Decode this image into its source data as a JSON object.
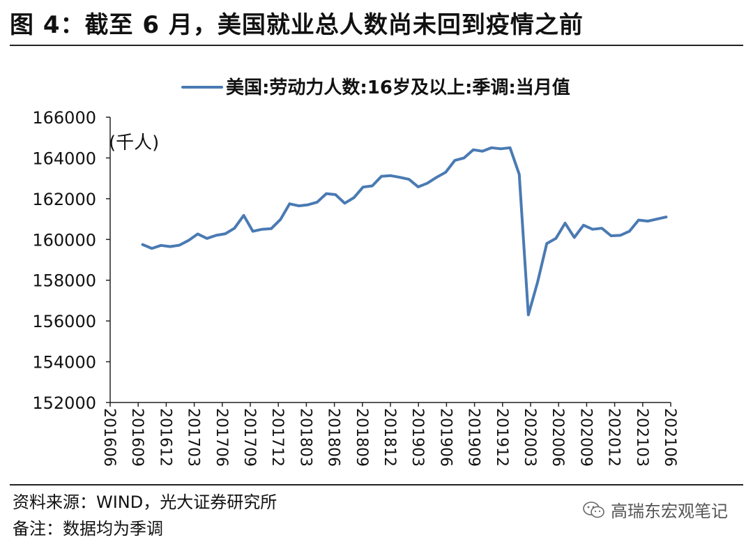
{
  "header": {
    "title": "图 4：截至 6 月，美国就业总人数尚未回到疫情之前"
  },
  "footer": {
    "source": "资料来源：WIND，光大证券研究所",
    "note": "备注：数据均为季调",
    "watermark": "高瑞东宏观笔记"
  },
  "chart_data": {
    "type": "line",
    "title": "",
    "unit_label": "(千人)",
    "legend": [
      "美国:劳动力人数:16岁及以上:季调:当月值"
    ],
    "legend_position": "top-center",
    "xlabel": "",
    "ylabel": "",
    "ylim": [
      152000,
      166000
    ],
    "y_ticks": [
      152000,
      154000,
      156000,
      158000,
      160000,
      162000,
      164000,
      166000
    ],
    "x_tick_labels": [
      "201606",
      "201609",
      "201612",
      "201703",
      "201706",
      "201709",
      "201712",
      "201803",
      "201806",
      "201809",
      "201812",
      "201903",
      "201906",
      "201909",
      "201912",
      "202003",
      "202006",
      "202009",
      "202012",
      "202103",
      "202106"
    ],
    "x": [
      "201609",
      "201610",
      "201611",
      "201612",
      "201701",
      "201702",
      "201703",
      "201704",
      "201705",
      "201706",
      "201707",
      "201708",
      "201709",
      "201710",
      "201711",
      "201712",
      "201801",
      "201802",
      "201803",
      "201804",
      "201805",
      "201806",
      "201807",
      "201808",
      "201809",
      "201810",
      "201811",
      "201812",
      "201901",
      "201902",
      "201903",
      "201904",
      "201905",
      "201906",
      "201907",
      "201908",
      "201909",
      "201910",
      "201911",
      "201912",
      "202001",
      "202002",
      "202003",
      "202004",
      "202005",
      "202006",
      "202007",
      "202008",
      "202009",
      "202010",
      "202011",
      "202012",
      "202101",
      "202102",
      "202103",
      "202104",
      "202105",
      "202106"
    ],
    "series": [
      {
        "name": "美国:劳动力人数:16岁及以上:季调:当月值",
        "color": "#4a7ab3",
        "values": [
          159750,
          159560,
          159710,
          159650,
          159720,
          159950,
          160270,
          160050,
          160200,
          160280,
          160550,
          161180,
          160400,
          160500,
          160530,
          160980,
          161750,
          161650,
          161700,
          161830,
          162250,
          162200,
          161780,
          162050,
          162570,
          162630,
          163100,
          163130,
          163050,
          162950,
          162580,
          162760,
          163050,
          163300,
          163880,
          164000,
          164400,
          164330,
          164500,
          164450,
          164500,
          163200,
          156300,
          157900,
          159800,
          160050,
          160800,
          160100,
          160700,
          160500,
          160550,
          160180,
          160200,
          160400,
          160950,
          160900,
          161000,
          161100
        ]
      }
    ]
  }
}
